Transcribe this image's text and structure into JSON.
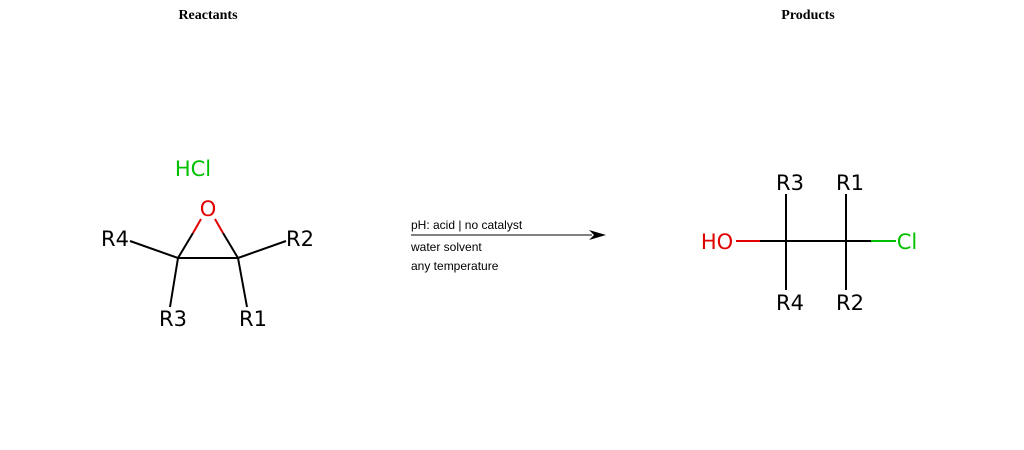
{
  "headings": {
    "reactants": "Reactants",
    "products": "Products"
  },
  "reactants": {
    "reagent": "HCl",
    "epoxide": {
      "oxygen": "O",
      "substituents": [
        "R1",
        "R2",
        "R3",
        "R4"
      ]
    }
  },
  "conditions": {
    "line1": "pH: acid | no catalyst",
    "line2": "water solvent",
    "line3": "any temperature"
  },
  "products": {
    "hydroxyl": "HO",
    "chloro": "Cl",
    "substituents": [
      "R1",
      "R2",
      "R3",
      "R4"
    ]
  },
  "colors": {
    "bond": "#000000",
    "oxygen": "#e00000",
    "chlorine": "#00c000",
    "text": "#000000"
  }
}
